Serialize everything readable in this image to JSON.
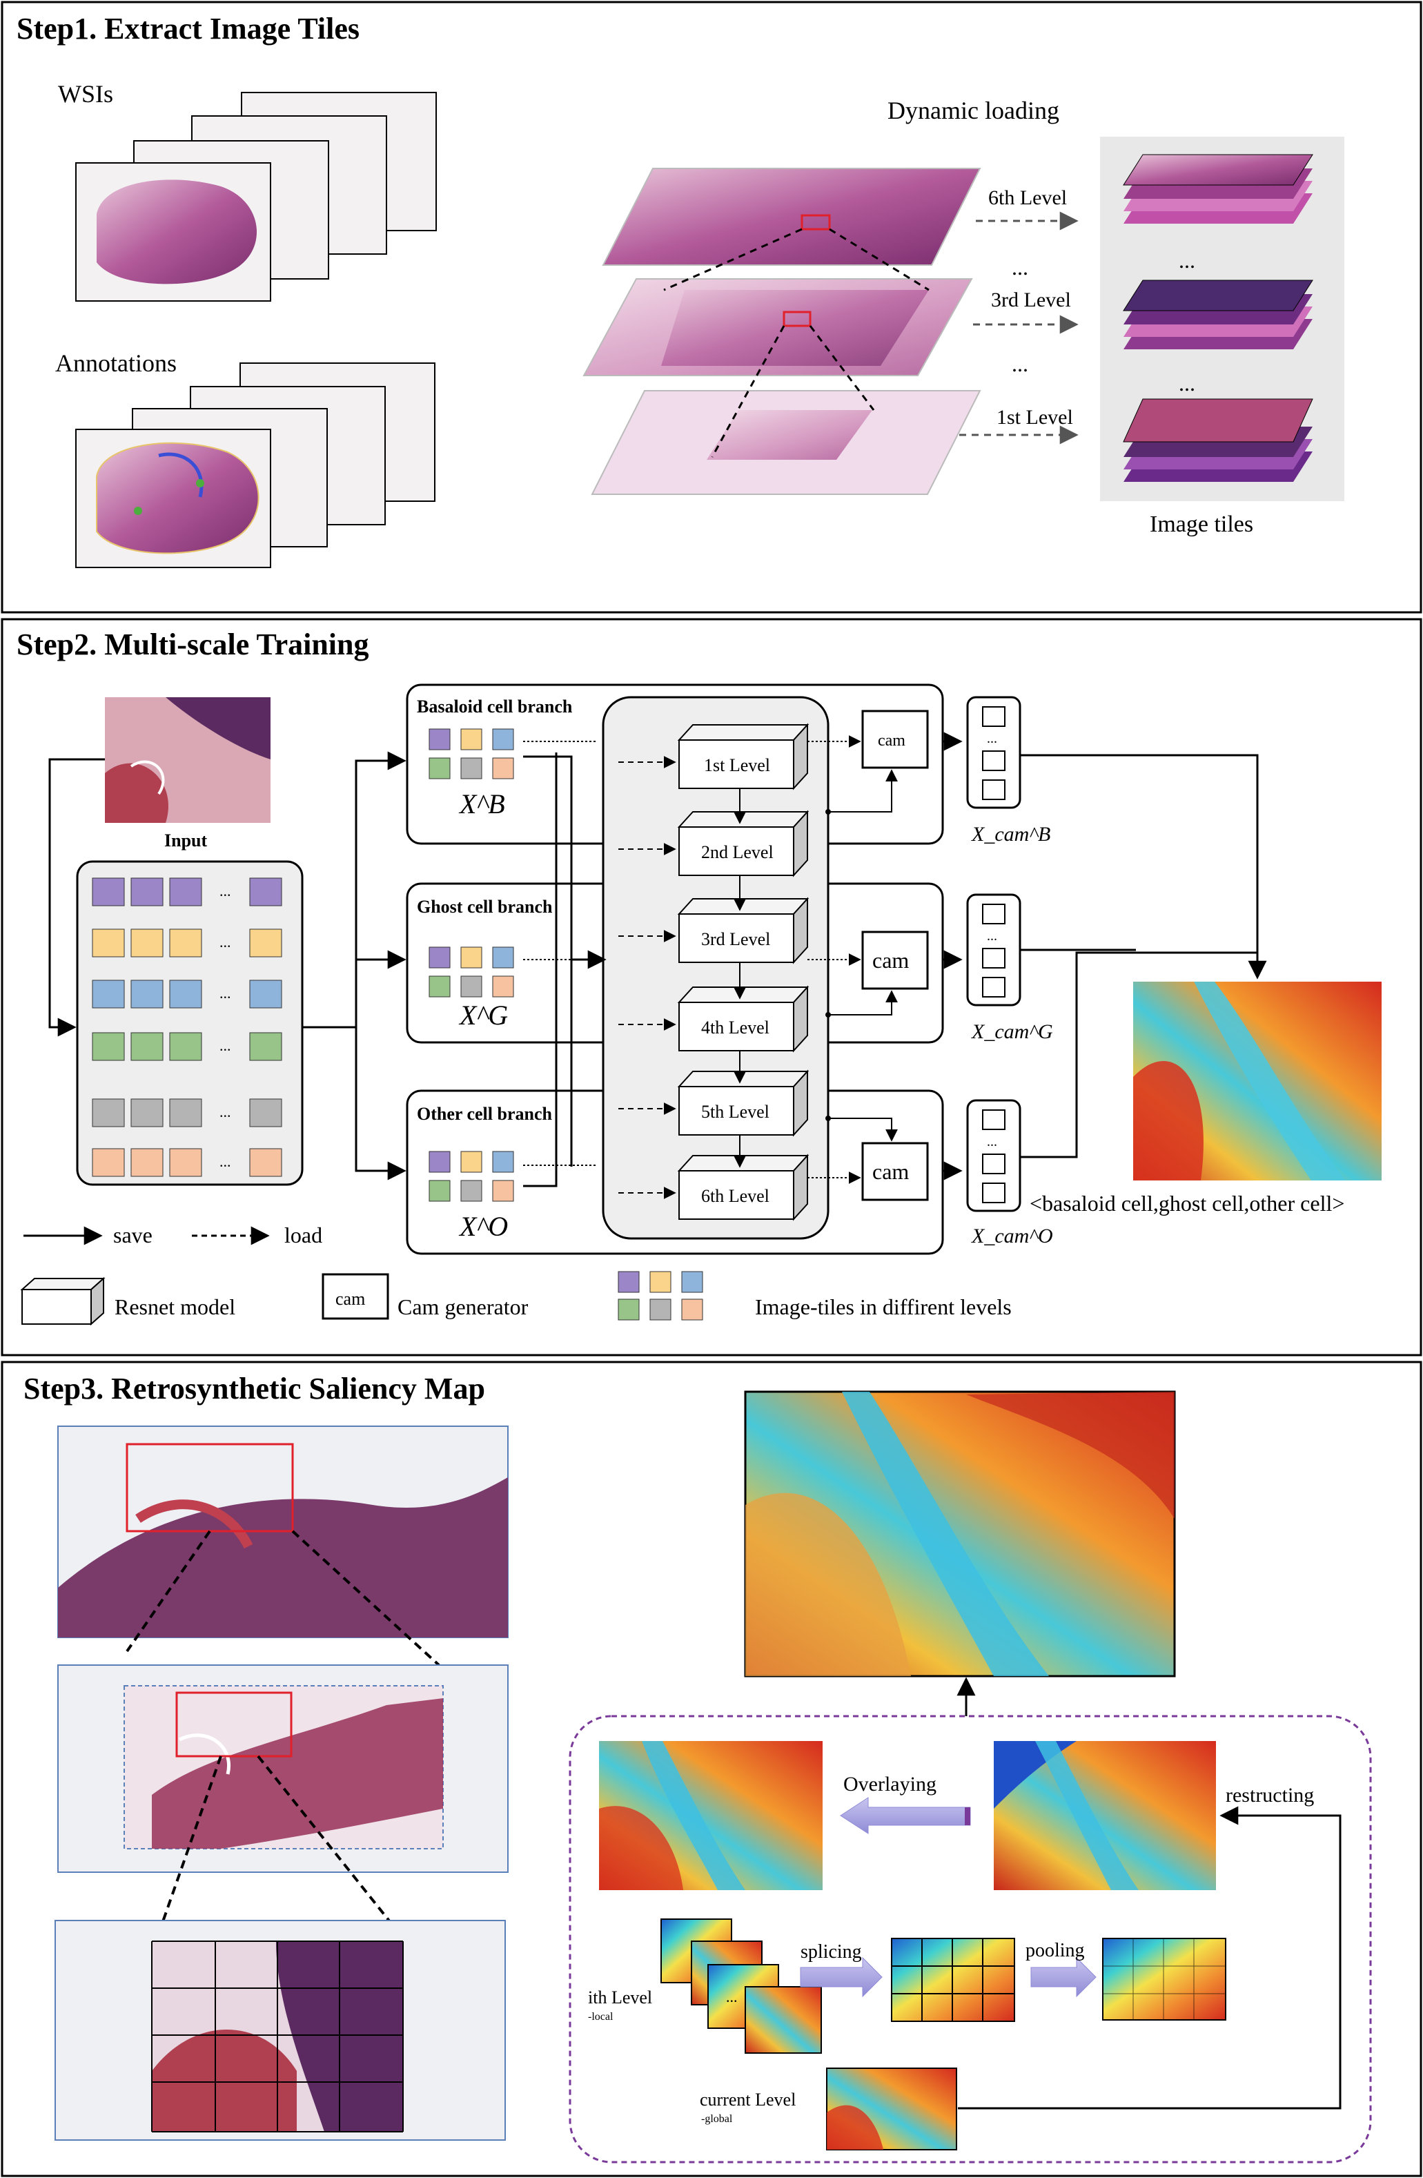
{
  "step1": {
    "title": "Step1. Extract Image Tiles",
    "wsis_label": "WSIs",
    "annotations_label": "Annotations",
    "dynamic_loading_label": "Dynamic loading",
    "level6": "6th Level",
    "level3": "3rd Level",
    "level1": "1st Level",
    "ellipsis": "...",
    "image_tiles_label": "Image tiles"
  },
  "step2": {
    "title": "Step2. Multi-scale Training",
    "input_label": "Input",
    "branch_basaloid": "Basaloid cell branch",
    "branch_ghost": "Ghost cell branch",
    "branch_other": "Other cell branch",
    "xb": "X^B",
    "xg": "X^G",
    "xo": "X^O",
    "levels": [
      "1st Level",
      "2nd Level",
      "3rd Level",
      "4th Level",
      "5th Level",
      "6th Level"
    ],
    "cam": "cam",
    "xcam_b": "X_cam^B",
    "xcam_g": "X_cam^G",
    "xcam_o": "X_cam^O",
    "output_caption": "<basaloid cell,ghost cell,other cell>",
    "legend": {
      "save": "save",
      "load": "load",
      "resnet": "Resnet model",
      "cam_box": "cam",
      "cam_generator": "Cam generator",
      "tiles": "Image-tiles in diffirent levels"
    },
    "ellipsis": "..."
  },
  "step3": {
    "title": "Step3.  Retrosynthetic Saliency Map",
    "overlaying": "Overlaying",
    "restructing": "restructing",
    "splicing": "splicing",
    "pooling": "pooling",
    "ith_level": "ith Level",
    "local": "-local",
    "current_level": "current Level",
    "global": "-global",
    "ellipsis": "..."
  },
  "colors": {
    "tile_purple": "#9b86c8",
    "tile_yellow": "#f9d48a",
    "tile_blue": "#8fb4dc",
    "tile_green": "#98c48a",
    "tile_gray": "#b4b4b4",
    "tile_orange": "#f6c2a0",
    "highlight_red": "#e0202a",
    "dashed_purple": "#7a3a9a",
    "arrow_lavender": "#a9a6e0"
  }
}
